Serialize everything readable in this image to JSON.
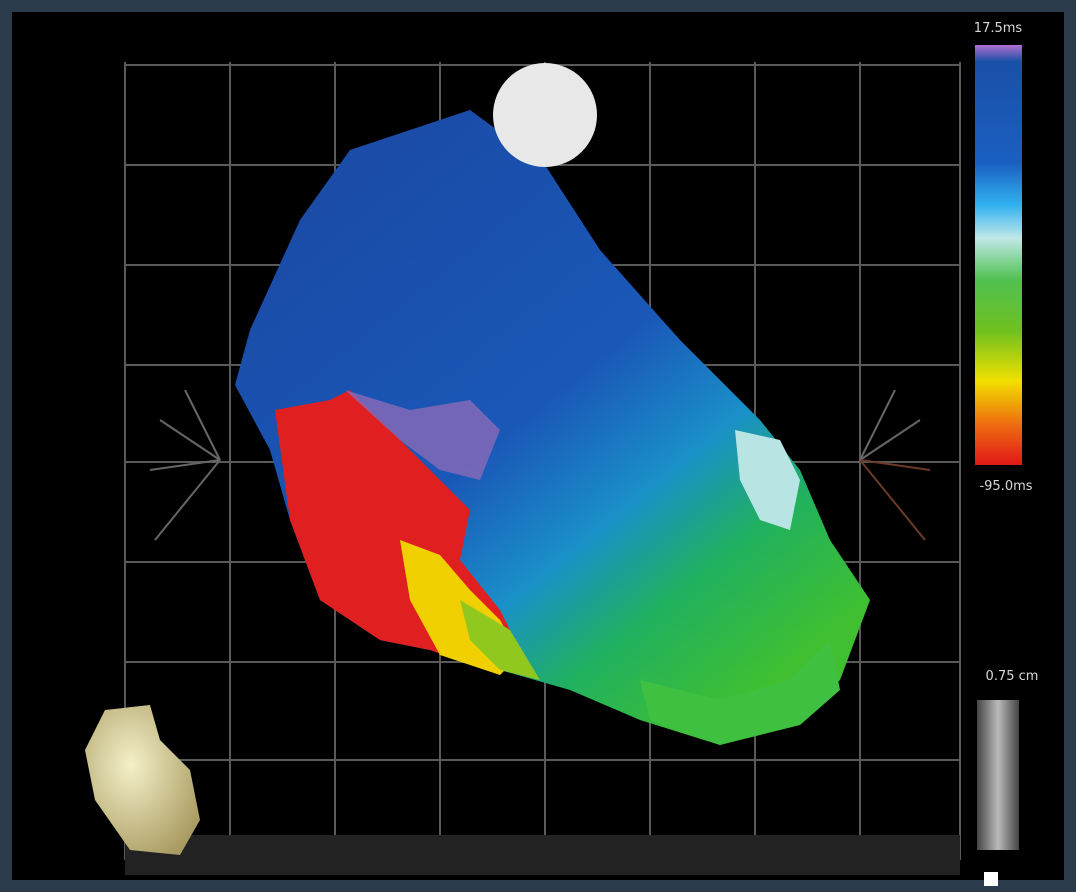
{
  "colorbar": {
    "max_label": "17.5ms",
    "min_label": "-95.0ms"
  },
  "scale_bar": {
    "label": "0.75 cm"
  }
}
